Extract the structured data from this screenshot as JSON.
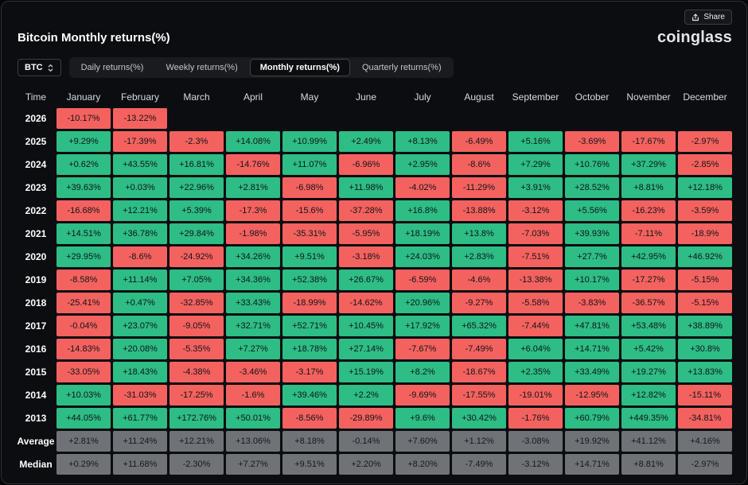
{
  "header": {
    "title": "Bitcoin Monthly returns(%)",
    "logo": "coinglass",
    "share_label": "Share"
  },
  "controls": {
    "coin": "BTC",
    "tabs": [
      {
        "label": "Daily returns(%)",
        "active": false
      },
      {
        "label": "Weekly returns(%)",
        "active": false
      },
      {
        "label": "Monthly returns(%)",
        "active": true
      },
      {
        "label": "Quarterly returns(%)",
        "active": false
      }
    ]
  },
  "colors": {
    "positive": "#2EBD85",
    "negative": "#F4625F",
    "neutral": "#6F7378",
    "background": "#0B0D10"
  },
  "chart_data": {
    "type": "heatmap",
    "title": "Bitcoin Monthly returns(%)",
    "columns": [
      "Time",
      "January",
      "February",
      "March",
      "April",
      "May",
      "June",
      "July",
      "August",
      "September",
      "October",
      "November",
      "December"
    ],
    "rows": [
      {
        "label": "2026",
        "stat": false,
        "values": [
          "-10.17%",
          "-13.22%",
          "",
          "",
          "",
          "",
          "",
          "",
          "",
          "",
          "",
          ""
        ]
      },
      {
        "label": "2025",
        "stat": false,
        "values": [
          "+9.29%",
          "-17.39%",
          "-2.3%",
          "+14.08%",
          "+10.99%",
          "+2.49%",
          "+8.13%",
          "-6.49%",
          "+5.16%",
          "-3.69%",
          "-17.67%",
          "-2.97%"
        ]
      },
      {
        "label": "2024",
        "stat": false,
        "values": [
          "+0.62%",
          "+43.55%",
          "+16.81%",
          "-14.76%",
          "+11.07%",
          "-6.96%",
          "+2.95%",
          "-8.6%",
          "+7.29%",
          "+10.76%",
          "+37.29%",
          "-2.85%"
        ]
      },
      {
        "label": "2023",
        "stat": false,
        "values": [
          "+39.63%",
          "+0.03%",
          "+22.96%",
          "+2.81%",
          "-6.98%",
          "+11.98%",
          "-4.02%",
          "-11.29%",
          "+3.91%",
          "+28.52%",
          "+8.81%",
          "+12.18%"
        ]
      },
      {
        "label": "2022",
        "stat": false,
        "values": [
          "-16.68%",
          "+12.21%",
          "+5.39%",
          "-17.3%",
          "-15.6%",
          "-37.28%",
          "+16.8%",
          "-13.88%",
          "-3.12%",
          "+5.56%",
          "-16.23%",
          "-3.59%"
        ]
      },
      {
        "label": "2021",
        "stat": false,
        "values": [
          "+14.51%",
          "+36.78%",
          "+29.84%",
          "-1.98%",
          "-35.31%",
          "-5.95%",
          "+18.19%",
          "+13.8%",
          "-7.03%",
          "+39.93%",
          "-7.11%",
          "-18.9%"
        ]
      },
      {
        "label": "2020",
        "stat": false,
        "values": [
          "+29.95%",
          "-8.6%",
          "-24.92%",
          "+34.26%",
          "+9.51%",
          "-3.18%",
          "+24.03%",
          "+2.83%",
          "-7.51%",
          "+27.7%",
          "+42.95%",
          "+46.92%"
        ]
      },
      {
        "label": "2019",
        "stat": false,
        "values": [
          "-8.58%",
          "+11.14%",
          "+7.05%",
          "+34.36%",
          "+52.38%",
          "+26.67%",
          "-6.59%",
          "-4.6%",
          "-13.38%",
          "+10.17%",
          "-17.27%",
          "-5.15%"
        ]
      },
      {
        "label": "2018",
        "stat": false,
        "values": [
          "-25.41%",
          "+0.47%",
          "-32.85%",
          "+33.43%",
          "-18.99%",
          "-14.62%",
          "+20.96%",
          "-9.27%",
          "-5.58%",
          "-3.83%",
          "-36.57%",
          "-5.15%"
        ]
      },
      {
        "label": "2017",
        "stat": false,
        "values": [
          "-0.04%",
          "+23.07%",
          "-9.05%",
          "+32.71%",
          "+52.71%",
          "+10.45%",
          "+17.92%",
          "+65.32%",
          "-7.44%",
          "+47.81%",
          "+53.48%",
          "+38.89%"
        ]
      },
      {
        "label": "2016",
        "stat": false,
        "values": [
          "-14.83%",
          "+20.08%",
          "-5.35%",
          "+7.27%",
          "+18.78%",
          "+27.14%",
          "-7.67%",
          "-7.49%",
          "+6.04%",
          "+14.71%",
          "+5.42%",
          "+30.8%"
        ]
      },
      {
        "label": "2015",
        "stat": false,
        "values": [
          "-33.05%",
          "+18.43%",
          "-4.38%",
          "-3.46%",
          "-3.17%",
          "+15.19%",
          "+8.2%",
          "-18.67%",
          "+2.35%",
          "+33.49%",
          "+19.27%",
          "+13.83%"
        ]
      },
      {
        "label": "2014",
        "stat": false,
        "values": [
          "+10.03%",
          "-31.03%",
          "-17.25%",
          "-1.6%",
          "+39.46%",
          "+2.2%",
          "-9.69%",
          "-17.55%",
          "-19.01%",
          "-12.95%",
          "+12.82%",
          "-15.11%"
        ]
      },
      {
        "label": "2013",
        "stat": false,
        "values": [
          "+44.05%",
          "+61.77%",
          "+172.76%",
          "+50.01%",
          "-8.56%",
          "-29.89%",
          "+9.6%",
          "+30.42%",
          "-1.76%",
          "+60.79%",
          "+449.35%",
          "-34.81%"
        ]
      },
      {
        "label": "Average",
        "stat": true,
        "values": [
          "+2.81%",
          "+11.24%",
          "+12.21%",
          "+13.06%",
          "+8.18%",
          "-0.14%",
          "+7.60%",
          "+1.12%",
          "-3.08%",
          "+19.92%",
          "+41.12%",
          "+4.16%"
        ]
      },
      {
        "label": "Median",
        "stat": true,
        "values": [
          "+0.29%",
          "+11.68%",
          "-2.30%",
          "+7.27%",
          "+9.51%",
          "+2.20%",
          "+8.20%",
          "-7.49%",
          "-3.12%",
          "+14.71%",
          "+8.81%",
          "-2.97%"
        ]
      }
    ]
  }
}
